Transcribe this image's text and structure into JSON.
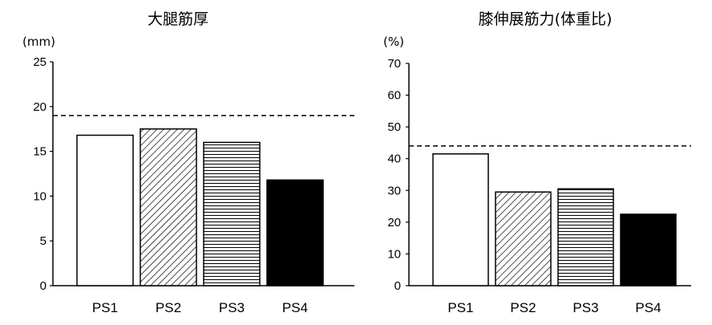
{
  "chart_data": [
    {
      "type": "bar",
      "title": "大腿筋厚",
      "unit_label": "(mm)",
      "categories": [
        "PS1",
        "PS2",
        "PS3",
        "PS4"
      ],
      "values": [
        16.8,
        17.5,
        16.0,
        11.8
      ],
      "ylim": [
        0,
        25
      ],
      "yticks": [
        "0",
        "5",
        "10",
        "15",
        "20",
        "25"
      ],
      "reference_line": 19.0,
      "bar_fills": [
        "white",
        "diagonal-hatch",
        "horizontal-hatch",
        "black"
      ]
    },
    {
      "type": "bar",
      "title": "膝伸展筋力(体重比)",
      "unit_label": "(%)",
      "categories": [
        "PS1",
        "PS2",
        "PS3",
        "PS4"
      ],
      "values": [
        41.5,
        29.5,
        30.5,
        22.5
      ],
      "ylim": [
        0,
        70
      ],
      "yticks": [
        "0",
        "10",
        "20",
        "30",
        "40",
        "50",
        "60",
        "70"
      ],
      "reference_line": 44.0,
      "bar_fills": [
        "white",
        "diagonal-hatch",
        "horizontal-hatch",
        "black"
      ]
    }
  ]
}
